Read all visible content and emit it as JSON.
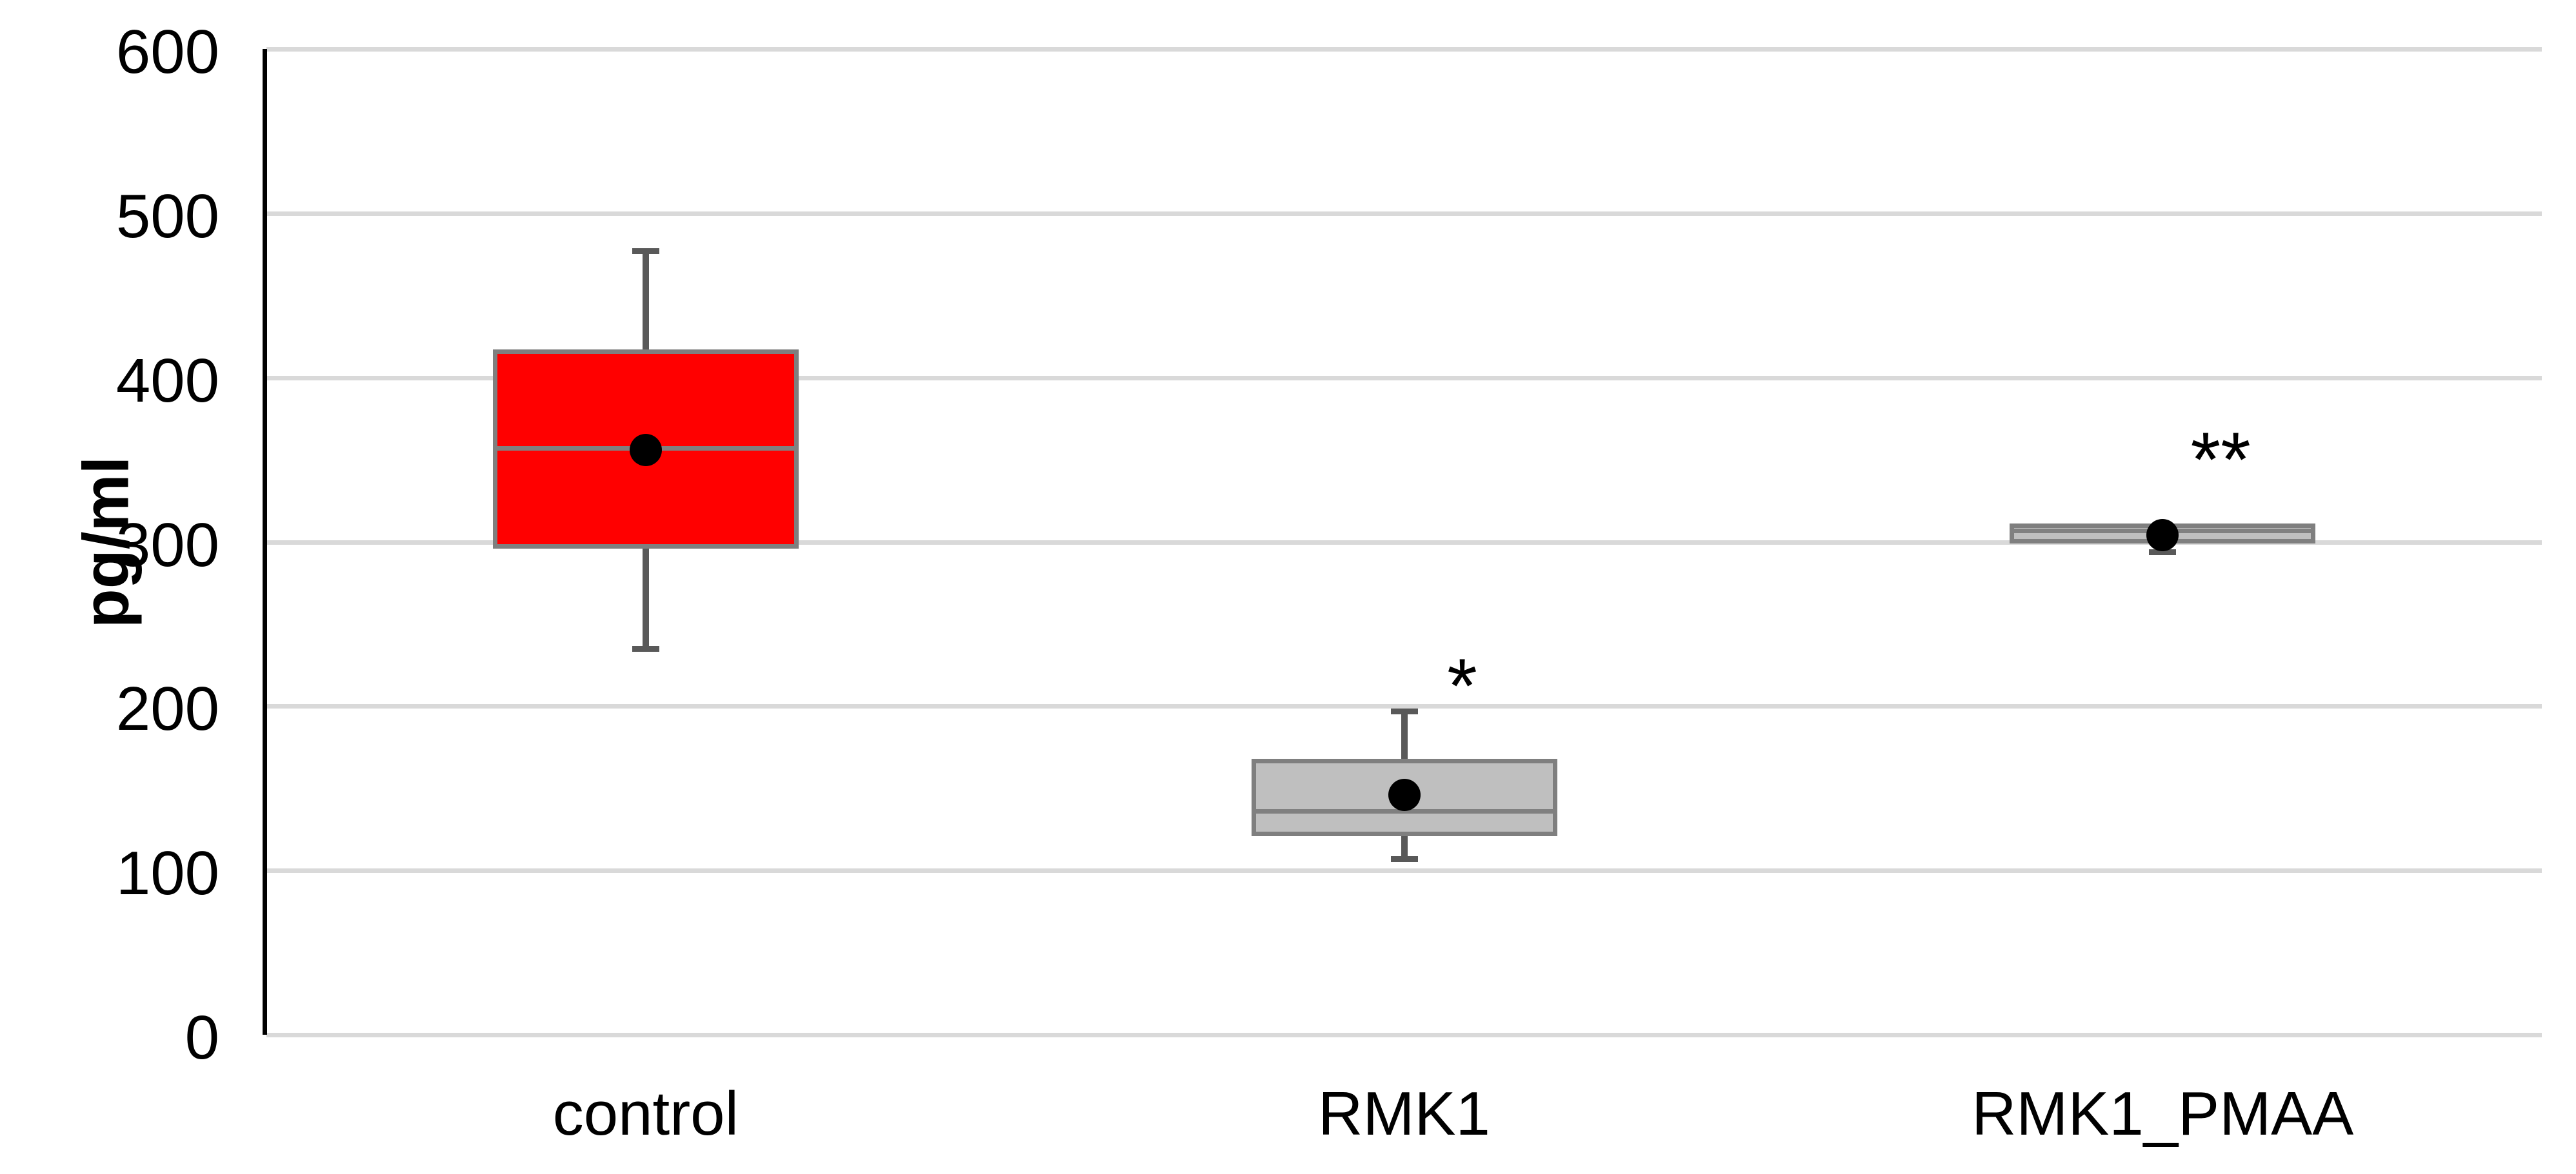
{
  "chart_data": {
    "type": "box",
    "title": "",
    "ylabel": "pg/ml",
    "xlabel": "",
    "ylim": [
      0,
      600
    ],
    "yticks": [
      600,
      500,
      400,
      300,
      200,
      100,
      0
    ],
    "grid": true,
    "legend": false,
    "categories": [
      "control",
      "RMK1",
      "RMK1_PMAA"
    ],
    "series": [
      {
        "name": "control",
        "fill": "#FF0000",
        "whisker_low": 235,
        "q1": 296,
        "median": 357,
        "mean": 356,
        "q3": 417,
        "whisker_high": 477,
        "annotation": "",
        "annotation_value": null
      },
      {
        "name": "RMK1",
        "fill": "#BFBFBF",
        "whisker_low": 107,
        "q1": 121,
        "median": 136,
        "mean": 146,
        "q3": 168,
        "whisker_high": 197,
        "annotation": "*",
        "annotation_value": 222
      },
      {
        "name": "RMK1_PMAA",
        "fill": "#BFBFBF",
        "whisker_low": 294,
        "q1": 299,
        "median": 307,
        "mean": 304,
        "q3": 311,
        "whisker_high": 311,
        "annotation": "**",
        "annotation_value": 360
      }
    ],
    "colors": {
      "background": "#FFFFFF",
      "gridline": "#D9D9D9",
      "axis_line": "#000000",
      "box_border": "#7F7F7F",
      "median": "#808080",
      "whisker": "#595959",
      "mean_dot": "#000000",
      "text": "#000000"
    }
  }
}
